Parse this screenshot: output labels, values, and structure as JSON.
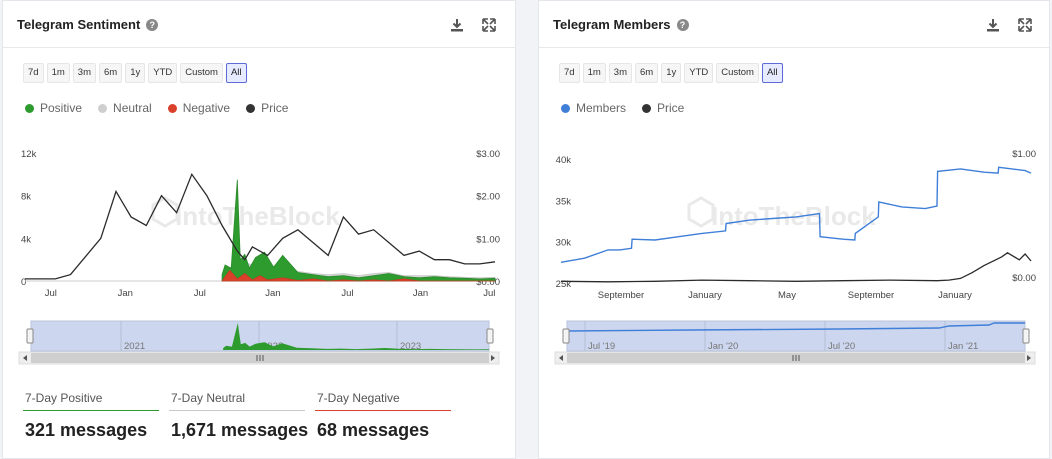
{
  "left_card": {
    "title": "Telegram Sentiment",
    "help_icon": "question-circle-icon",
    "ranges": [
      "7d",
      "1m",
      "3m",
      "6m",
      "1y",
      "YTD",
      "Custom",
      "All"
    ],
    "active_range": "All",
    "legend": [
      {
        "label": "Positive",
        "color": "#2e9b2e"
      },
      {
        "label": "Neutral",
        "color": "#cfcfcf"
      },
      {
        "label": "Negative",
        "color": "#d9412b"
      },
      {
        "label": "Price",
        "color": "#333333"
      }
    ],
    "watermark": "IntoTheBlock",
    "y_left_ticks": [
      "12k",
      "8k",
      "4k",
      "0"
    ],
    "y_right_ticks": [
      "$3.00",
      "$2.00",
      "$1.00",
      "$0.00"
    ],
    "x_ticks": [
      "Jul",
      "Jan",
      "Jul",
      "Jan",
      "Jul",
      "Jan",
      "Jul"
    ],
    "nav_ticks": [
      "2021",
      "2022",
      "2023"
    ],
    "stats": [
      {
        "label": "7-Day Positive",
        "value": "321 messages",
        "color": "#2e9b2e"
      },
      {
        "label": "7-Day Neutral",
        "value": "1,671 messages",
        "color": "#c8c8c8"
      },
      {
        "label": "7-Day Negative",
        "value": "68 messages",
        "color": "#d9412b"
      }
    ]
  },
  "right_card": {
    "title": "Telegram Members",
    "help_icon": "question-circle-icon",
    "ranges": [
      "7d",
      "1m",
      "3m",
      "6m",
      "1y",
      "YTD",
      "Custom",
      "All"
    ],
    "active_range": "All",
    "legend": [
      {
        "label": "Members",
        "color": "#3f7fd8"
      },
      {
        "label": "Price",
        "color": "#333333"
      }
    ],
    "watermark": "IntoTheBlock",
    "y_left_ticks": [
      "40k",
      "35k",
      "30k",
      "25k"
    ],
    "y_right_ticks": [
      "$1.00",
      "$0.00"
    ],
    "x_ticks": [
      "September",
      "January",
      "May",
      "September",
      "January"
    ],
    "nav_ticks": [
      "Jul '19",
      "Jan '20",
      "Jul '20",
      "Jan '21"
    ]
  },
  "chart_data": [
    {
      "type": "area",
      "title": "Telegram Sentiment",
      "x_label_sequence": [
        "Jul",
        "Jan",
        "Jul",
        "Jan",
        "Jul",
        "Jan",
        "Jul"
      ],
      "y_left_range": [
        0,
        12000
      ],
      "y_right_range": [
        0,
        3
      ],
      "series": [
        {
          "name": "Price",
          "axis": "right",
          "x": [
            0,
            2,
            3,
            5,
            6,
            7,
            8,
            9,
            10,
            11,
            12,
            13,
            14,
            14.5,
            15,
            16,
            17,
            18,
            19,
            20,
            21,
            22,
            23,
            24,
            25,
            26,
            27,
            28,
            29,
            30,
            31
          ],
          "values": [
            0.05,
            0.05,
            0.15,
            1.0,
            2.1,
            1.5,
            1.3,
            2.0,
            1.6,
            2.5,
            2.0,
            1.3,
            0.7,
            0.5,
            0.8,
            0.6,
            1.0,
            1.2,
            0.9,
            0.6,
            1.5,
            1.1,
            1.2,
            0.9,
            0.6,
            0.7,
            0.5,
            0.5,
            0.4,
            0.4,
            0.45
          ]
        },
        {
          "name": "Positive",
          "axis": "left",
          "x": [
            13,
            13.2,
            13.6,
            14,
            14.2,
            14.5,
            14.8,
            15.2,
            15.8,
            16.4,
            17,
            18,
            19,
            20,
            21,
            22,
            23,
            24,
            25,
            26,
            27,
            28,
            29,
            30,
            31
          ],
          "values": [
            600,
            1500,
            1200,
            9500,
            2000,
            2500,
            1200,
            2200,
            2700,
            1300,
            2400,
            800,
            600,
            400,
            500,
            300,
            500,
            700,
            400,
            300,
            400,
            300,
            250,
            200,
            250
          ]
        },
        {
          "name": "Neutral",
          "axis": "left",
          "x": [
            13,
            14,
            15,
            16,
            17,
            18,
            19,
            20,
            21,
            22,
            23,
            24,
            25,
            26,
            27,
            28,
            29,
            30,
            31
          ],
          "values": [
            300,
            2000,
            1500,
            1500,
            1000,
            900,
            700,
            600,
            700,
            500,
            700,
            800,
            500,
            500,
            500,
            400,
            350,
            300,
            350
          ]
        },
        {
          "name": "Negative",
          "axis": "left",
          "x": [
            13,
            13.5,
            14,
            14.5,
            15,
            15.5,
            16,
            17,
            18,
            19,
            20,
            21,
            22,
            23,
            24,
            25,
            26,
            27,
            28,
            29,
            30,
            31
          ],
          "values": [
            0,
            1000,
            200,
            700,
            100,
            500,
            100,
            300,
            50,
            200,
            0,
            100,
            0,
            100,
            0,
            200,
            0,
            0,
            0,
            0,
            0,
            0
          ]
        }
      ]
    },
    {
      "type": "line",
      "title": "Telegram Members",
      "x_label_sequence": [
        "September",
        "January",
        "May",
        "September",
        "January"
      ],
      "y_left_range": [
        25000,
        40000
      ],
      "y_right_range": [
        0,
        1
      ],
      "series": [
        {
          "name": "Members",
          "axis": "left",
          "x": [
            0,
            2,
            4,
            5,
            6,
            6.05,
            8,
            10,
            12,
            14,
            14.05,
            16,
            18,
            20,
            22,
            22.05,
            24,
            25,
            25.05,
            27,
            27.05,
            29,
            31,
            32,
            32.05,
            34,
            36,
            37.2,
            37.25,
            39.5,
            40
          ],
          "values": [
            27500,
            28000,
            29000,
            29000,
            29200,
            30300,
            30200,
            30600,
            31000,
            31300,
            32200,
            32600,
            32800,
            33000,
            33400,
            30600,
            30300,
            30200,
            31000,
            33000,
            34800,
            34200,
            34000,
            34300,
            38500,
            38800,
            38400,
            38300,
            39000,
            38600,
            38300
          ]
        },
        {
          "name": "Price",
          "axis": "right",
          "x": [
            0,
            4,
            8,
            12,
            16,
            20,
            24,
            28,
            32,
            33,
            34,
            35,
            36,
            37,
            37.5,
            38,
            39,
            39.5,
            40
          ],
          "values": [
            0.03,
            0.02,
            0.03,
            0.05,
            0.04,
            0.03,
            0.04,
            0.05,
            0.04,
            0.05,
            0.08,
            0.18,
            0.3,
            0.4,
            0.45,
            0.52,
            0.4,
            0.5,
            0.38
          ]
        }
      ]
    }
  ]
}
